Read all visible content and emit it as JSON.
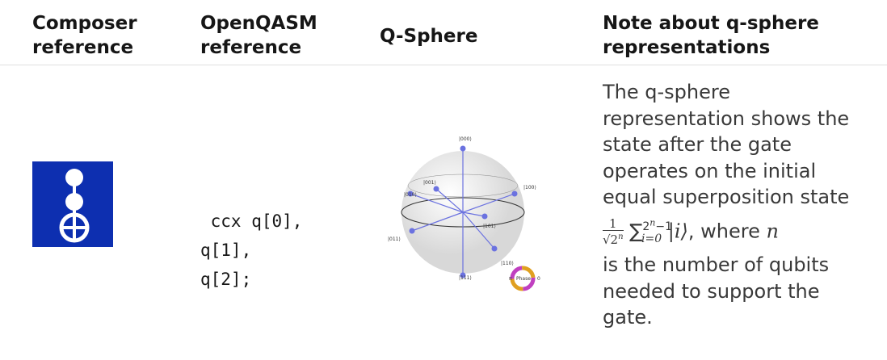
{
  "table": {
    "headers": [
      "Composer reference",
      "OpenQASM reference",
      "Q-Sphere",
      "Note about q-sphere representations"
    ],
    "rows": [
      {
        "code": [
          " ccx q[0],",
          "q[1],",
          "q[2];"
        ],
        "qsphere": {
          "labels": [
            "|000⟩",
            "|001⟩",
            "|010⟩",
            "|100⟩",
            "|101⟩",
            "|011⟩",
            "|110⟩",
            "|111⟩"
          ],
          "phase": "Phase",
          "pi": "π",
          "zero": "0"
        },
        "note_before": [
          "The q-sphere",
          "representation shows the",
          "state after the gate",
          "operates on the initial",
          "equal superposition state"
        ],
        "math": {
          "num": "1",
          "den": "√2",
          "den_sup": "n",
          "sum": "∑",
          "sum_sup": "2",
          "sum_sup_sup": "n",
          "sum_sup_tail": "−1",
          "sum_sub": "i=0",
          "ket": "|i⟩",
          "where": ", where",
          "var": "n"
        },
        "note_after": [
          "is the number of qubits",
          "needed to support the",
          "gate."
        ]
      }
    ]
  }
}
